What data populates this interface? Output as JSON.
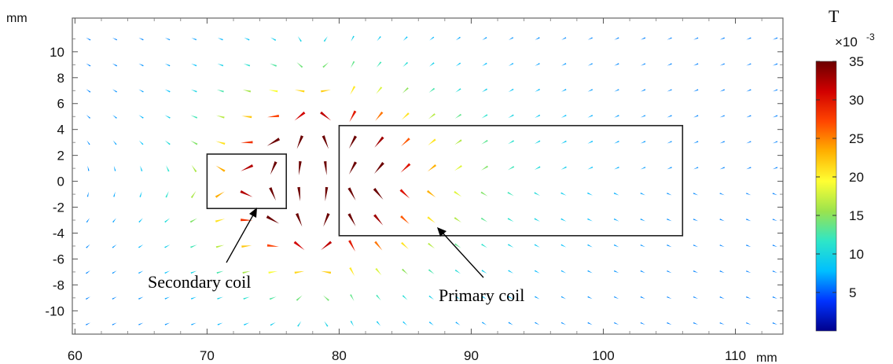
{
  "chart_data": {
    "type": "vector-field",
    "xunit": "mm",
    "yunit": "mm",
    "xlim": [
      59.8,
      113.6
    ],
    "ylim": [
      -11.8,
      12.6
    ],
    "xticks": [
      60,
      70,
      80,
      90,
      100,
      110
    ],
    "yticks": [
      10,
      8,
      6,
      4,
      2,
      0,
      -2,
      -4,
      -6,
      -8,
      -10
    ],
    "grid": false,
    "field_quantity": "magnetic flux density (arrows colored by magnitude)",
    "colorbar": {
      "unit": "T",
      "scale": "×10",
      "exponent": "-3",
      "min": 0,
      "max": 35,
      "ticks": [
        35,
        30,
        25,
        20,
        15,
        10,
        5
      ],
      "colormap": [
        "#00008b",
        "#0033ff",
        "#00bfff",
        "#2ee6c8",
        "#9be34d",
        "#ffff33",
        "#ffb000",
        "#ff4500",
        "#d10000",
        "#6b0000"
      ]
    },
    "regions": [
      {
        "name": "secondary-coil",
        "x": [
          70,
          76
        ],
        "y": [
          -2.1,
          2.1
        ]
      },
      {
        "name": "primary-coil",
        "x": [
          80,
          106
        ],
        "y": [
          -4.2,
          4.3
        ]
      }
    ],
    "annotations": [
      {
        "text": "Secondary coil",
        "arrow_to": [
          73.2,
          -1.9
        ]
      },
      {
        "text": "Primary coil",
        "arrow_to": [
          87.6,
          -3.5
        ]
      }
    ],
    "arrow_grid": {
      "x_start": 61,
      "x_end": 113,
      "x_step": 2,
      "y_start": -11,
      "y_end": 11,
      "y_step": 2
    },
    "field_model": {
      "dipole_center": [
        78,
        0
      ],
      "peak_magnitude": 35
    }
  }
}
